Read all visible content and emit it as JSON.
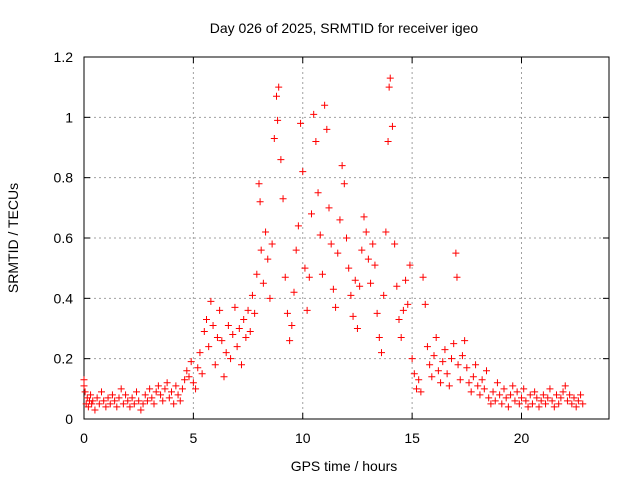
{
  "chart_data": {
    "type": "scatter",
    "title": "Day 026 of 2025, SRMTID for receiver igeo",
    "xlabel": "GPS time / hours",
    "ylabel": "SRMTID / TECUs",
    "xlim": [
      0,
      24
    ],
    "ylim": [
      0,
      1.2
    ],
    "xticks": [
      0,
      5,
      10,
      15,
      20
    ],
    "yticks": [
      0,
      0.2,
      0.4,
      0.6,
      0.8,
      1,
      1.2
    ],
    "xtick_labels": [
      "0",
      "5",
      "10",
      "15",
      "20"
    ],
    "ytick_labels": [
      "0",
      "0.2",
      "0.4",
      "0.6",
      "0.8",
      "1",
      "1.2"
    ],
    "grid": true,
    "legend": "none",
    "marker": "+",
    "series": [
      {
        "name": "SRMTID",
        "color": "#ff0000",
        "points": [
          [
            0.0,
            0.13
          ],
          [
            0.0,
            0.11
          ],
          [
            0.05,
            0.09
          ],
          [
            0.1,
            0.05
          ],
          [
            0.15,
            0.07
          ],
          [
            0.2,
            0.04
          ],
          [
            0.25,
            0.06
          ],
          [
            0.3,
            0.08
          ],
          [
            0.35,
            0.05
          ],
          [
            0.4,
            0.06
          ],
          [
            0.5,
            0.03
          ],
          [
            0.6,
            0.07
          ],
          [
            0.7,
            0.05
          ],
          [
            0.8,
            0.09
          ],
          [
            0.9,
            0.06
          ],
          [
            1.0,
            0.04
          ],
          [
            1.1,
            0.07
          ],
          [
            1.2,
            0.05
          ],
          [
            1.3,
            0.08
          ],
          [
            1.4,
            0.06
          ],
          [
            1.5,
            0.04
          ],
          [
            1.6,
            0.07
          ],
          [
            1.7,
            0.1
          ],
          [
            1.8,
            0.05
          ],
          [
            1.9,
            0.08
          ],
          [
            2.0,
            0.06
          ],
          [
            2.1,
            0.04
          ],
          [
            2.2,
            0.07
          ],
          [
            2.3,
            0.05
          ],
          [
            2.4,
            0.09
          ],
          [
            2.5,
            0.06
          ],
          [
            2.6,
            0.03
          ],
          [
            2.7,
            0.05
          ],
          [
            2.8,
            0.08
          ],
          [
            2.9,
            0.06
          ],
          [
            3.0,
            0.1
          ],
          [
            3.1,
            0.07
          ],
          [
            3.2,
            0.05
          ],
          [
            3.3,
            0.09
          ],
          [
            3.4,
            0.11
          ],
          [
            3.5,
            0.08
          ],
          [
            3.6,
            0.06
          ],
          [
            3.7,
            0.1
          ],
          [
            3.8,
            0.12
          ],
          [
            3.9,
            0.07
          ],
          [
            4.0,
            0.09
          ],
          [
            4.1,
            0.05
          ],
          [
            4.2,
            0.11
          ],
          [
            4.3,
            0.08
          ],
          [
            4.4,
            0.06
          ],
          [
            4.5,
            0.1
          ],
          [
            4.6,
            0.13
          ],
          [
            4.7,
            0.16
          ],
          [
            4.8,
            0.14
          ],
          [
            4.9,
            0.19
          ],
          [
            5.0,
            0.12
          ],
          [
            5.1,
            0.1
          ],
          [
            5.2,
            0.17
          ],
          [
            5.3,
            0.22
          ],
          [
            5.4,
            0.15
          ],
          [
            5.5,
            0.29
          ],
          [
            5.6,
            0.33
          ],
          [
            5.7,
            0.24
          ],
          [
            5.8,
            0.39
          ],
          [
            5.9,
            0.31
          ],
          [
            6.0,
            0.18
          ],
          [
            6.1,
            0.27
          ],
          [
            6.2,
            0.36
          ],
          [
            6.3,
            0.26
          ],
          [
            6.4,
            0.14
          ],
          [
            6.5,
            0.22
          ],
          [
            6.6,
            0.31
          ],
          [
            6.7,
            0.2
          ],
          [
            6.8,
            0.28
          ],
          [
            6.9,
            0.37
          ],
          [
            7.0,
            0.24
          ],
          [
            7.1,
            0.3
          ],
          [
            7.2,
            0.18
          ],
          [
            7.3,
            0.33
          ],
          [
            7.4,
            0.27
          ],
          [
            7.5,
            0.36
          ],
          [
            7.6,
            0.29
          ],
          [
            7.7,
            0.41
          ],
          [
            7.8,
            0.35
          ],
          [
            7.9,
            0.48
          ],
          [
            8.0,
            0.78
          ],
          [
            8.05,
            0.72
          ],
          [
            8.1,
            0.56
          ],
          [
            8.2,
            0.45
          ],
          [
            8.3,
            0.62
          ],
          [
            8.4,
            0.53
          ],
          [
            8.5,
            0.4
          ],
          [
            8.6,
            0.58
          ],
          [
            8.7,
            0.93
          ],
          [
            8.8,
            1.07
          ],
          [
            8.85,
            0.99
          ],
          [
            8.9,
            1.1
          ],
          [
            9.0,
            0.86
          ],
          [
            9.1,
            0.73
          ],
          [
            9.2,
            0.47
          ],
          [
            9.3,
            0.35
          ],
          [
            9.4,
            0.26
          ],
          [
            9.5,
            0.31
          ],
          [
            9.6,
            0.42
          ],
          [
            9.7,
            0.56
          ],
          [
            9.8,
            0.64
          ],
          [
            9.9,
            0.98
          ],
          [
            10.0,
            0.82
          ],
          [
            10.1,
            0.5
          ],
          [
            10.2,
            0.36
          ],
          [
            10.3,
            0.47
          ],
          [
            10.4,
            0.68
          ],
          [
            10.5,
            1.01
          ],
          [
            10.6,
            0.92
          ],
          [
            10.7,
            0.75
          ],
          [
            10.8,
            0.61
          ],
          [
            10.9,
            0.48
          ],
          [
            11.0,
            1.04
          ],
          [
            11.1,
            0.96
          ],
          [
            11.2,
            0.7
          ],
          [
            11.3,
            0.58
          ],
          [
            11.4,
            0.43
          ],
          [
            11.5,
            0.37
          ],
          [
            11.6,
            0.55
          ],
          [
            11.7,
            0.66
          ],
          [
            11.8,
            0.84
          ],
          [
            11.9,
            0.78
          ],
          [
            12.0,
            0.6
          ],
          [
            12.1,
            0.5
          ],
          [
            12.2,
            0.41
          ],
          [
            12.3,
            0.34
          ],
          [
            12.4,
            0.46
          ],
          [
            12.5,
            0.3
          ],
          [
            12.6,
            0.44
          ],
          [
            12.7,
            0.56
          ],
          [
            12.8,
            0.67
          ],
          [
            12.9,
            0.62
          ],
          [
            13.0,
            0.53
          ],
          [
            13.1,
            0.45
          ],
          [
            13.2,
            0.58
          ],
          [
            13.3,
            0.51
          ],
          [
            13.4,
            0.35
          ],
          [
            13.5,
            0.27
          ],
          [
            13.6,
            0.22
          ],
          [
            13.7,
            0.41
          ],
          [
            13.8,
            0.62
          ],
          [
            13.9,
            0.92
          ],
          [
            13.95,
            1.1
          ],
          [
            14.0,
            1.13
          ],
          [
            14.1,
            0.97
          ],
          [
            14.2,
            0.58
          ],
          [
            14.3,
            0.44
          ],
          [
            14.4,
            0.33
          ],
          [
            14.5,
            0.27
          ],
          [
            14.6,
            0.36
          ],
          [
            14.7,
            0.46
          ],
          [
            14.8,
            0.38
          ],
          [
            14.9,
            0.51
          ],
          [
            15.0,
            0.2
          ],
          [
            15.1,
            0.15
          ],
          [
            15.2,
            0.1
          ],
          [
            15.3,
            0.13
          ],
          [
            15.4,
            0.09
          ],
          [
            15.5,
            0.47
          ],
          [
            15.6,
            0.38
          ],
          [
            15.7,
            0.24
          ],
          [
            15.8,
            0.18
          ],
          [
            15.9,
            0.14
          ],
          [
            16.0,
            0.21
          ],
          [
            16.1,
            0.27
          ],
          [
            16.2,
            0.16
          ],
          [
            16.3,
            0.12
          ],
          [
            16.4,
            0.19
          ],
          [
            16.5,
            0.23
          ],
          [
            16.6,
            0.15
          ],
          [
            16.7,
            0.11
          ],
          [
            16.8,
            0.2
          ],
          [
            16.9,
            0.25
          ],
          [
            17.0,
            0.55
          ],
          [
            17.05,
            0.47
          ],
          [
            17.1,
            0.18
          ],
          [
            17.2,
            0.13
          ],
          [
            17.3,
            0.21
          ],
          [
            17.4,
            0.26
          ],
          [
            17.5,
            0.17
          ],
          [
            17.6,
            0.12
          ],
          [
            17.7,
            0.09
          ],
          [
            17.8,
            0.14
          ],
          [
            17.9,
            0.18
          ],
          [
            18.0,
            0.11
          ],
          [
            18.1,
            0.08
          ],
          [
            18.2,
            0.13
          ],
          [
            18.3,
            0.1
          ],
          [
            18.4,
            0.16
          ],
          [
            18.5,
            0.07
          ],
          [
            18.6,
            0.05
          ],
          [
            18.7,
            0.09
          ],
          [
            18.8,
            0.06
          ],
          [
            18.9,
            0.12
          ],
          [
            19.0,
            0.08
          ],
          [
            19.1,
            0.05
          ],
          [
            19.2,
            0.1
          ],
          [
            19.3,
            0.07
          ],
          [
            19.4,
            0.04
          ],
          [
            19.5,
            0.08
          ],
          [
            19.6,
            0.11
          ],
          [
            19.7,
            0.06
          ],
          [
            19.8,
            0.09
          ],
          [
            19.9,
            0.05
          ],
          [
            20.0,
            0.07
          ],
          [
            20.1,
            0.1
          ],
          [
            20.2,
            0.06
          ],
          [
            20.3,
            0.04
          ],
          [
            20.4,
            0.08
          ],
          [
            20.5,
            0.05
          ],
          [
            20.6,
            0.09
          ],
          [
            20.7,
            0.07
          ],
          [
            20.8,
            0.04
          ],
          [
            20.9,
            0.06
          ],
          [
            21.0,
            0.08
          ],
          [
            21.1,
            0.05
          ],
          [
            21.2,
            0.07
          ],
          [
            21.3,
            0.1
          ],
          [
            21.4,
            0.06
          ],
          [
            21.5,
            0.04
          ],
          [
            21.6,
            0.08
          ],
          [
            21.7,
            0.05
          ],
          [
            21.8,
            0.07
          ],
          [
            21.9,
            0.09
          ],
          [
            22.0,
            0.11
          ],
          [
            22.1,
            0.06
          ],
          [
            22.2,
            0.08
          ],
          [
            22.3,
            0.05
          ],
          [
            22.4,
            0.07
          ],
          [
            22.5,
            0.04
          ],
          [
            22.6,
            0.06
          ],
          [
            22.7,
            0.08
          ],
          [
            22.8,
            0.05
          ]
        ]
      }
    ]
  }
}
